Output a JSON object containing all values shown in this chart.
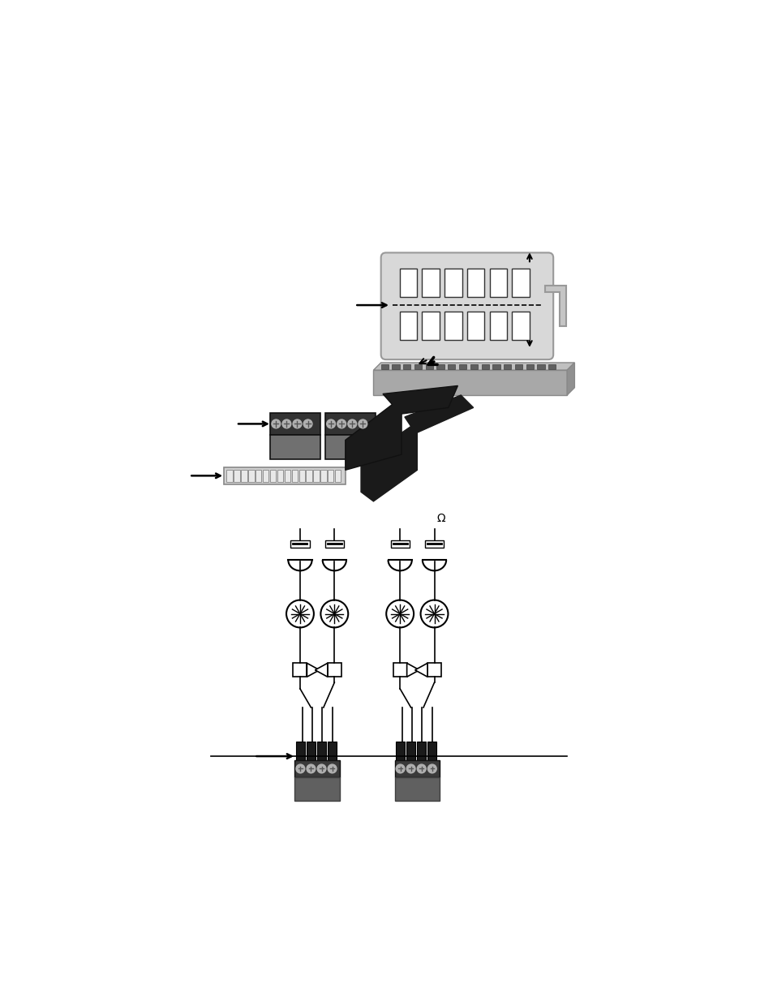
{
  "bg_color": "#ffffff",
  "fig_width": 9.54,
  "fig_height": 12.35,
  "gray_light": "#d8d8d8",
  "gray_dark": "#808080",
  "gray_mid": "#a8a8a8",
  "black": "#000000",
  "white": "#ffffff"
}
